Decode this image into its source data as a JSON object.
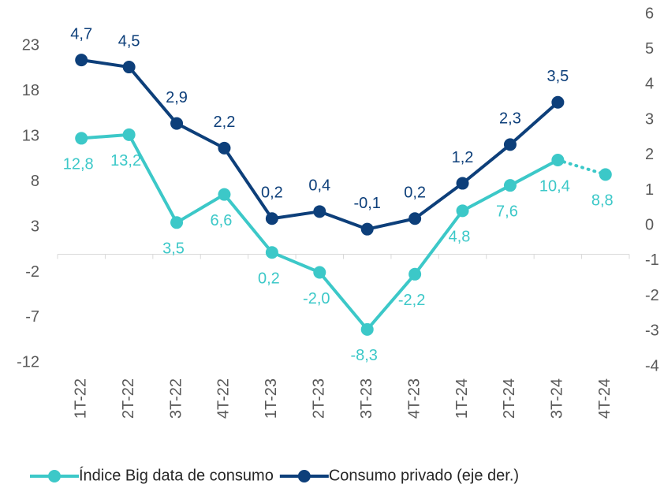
{
  "chart_data": {
    "type": "line",
    "categories": [
      "1T-22",
      "2T-22",
      "3T-22",
      "4T-22",
      "1T-23",
      "2T-23",
      "3T-23",
      "4T-23",
      "1T-24",
      "2T-24",
      "3T-24",
      "4T-24"
    ],
    "series": [
      {
        "name": "Índice Big data de consumo",
        "color": "#3cc8c8",
        "values": [
          12.8,
          13.2,
          3.5,
          6.6,
          0.2,
          -2.0,
          -8.3,
          -2.2,
          4.8,
          7.6,
          10.4,
          8.8
        ],
        "value_labels": [
          "12,8",
          "13,2",
          "3,5",
          "6,6",
          "0,2",
          "-2,0",
          "-8,3",
          "-2,2",
          "4,8",
          "7,6",
          "10,4",
          "8,8"
        ],
        "dotted_last_segment": true
      },
      {
        "name": "Consumo privado (eje der.)",
        "color": "#0d3f7a",
        "axis": "y2",
        "values": [
          4.7,
          4.5,
          2.9,
          2.2,
          0.2,
          0.4,
          -0.1,
          0.2,
          1.2,
          2.3,
          3.5,
          null
        ],
        "value_labels": [
          "4,7",
          "4,5",
          "2,9",
          "2,2",
          "0,2",
          "0,4",
          "-0,1",
          "0,2",
          "1,2",
          "2,3",
          "3,5",
          null
        ]
      }
    ],
    "ylim": [
      -12.4,
      26.5
    ],
    "yticks": [
      -12,
      -7,
      -2,
      3,
      8,
      13,
      18,
      23
    ],
    "y2lim": [
      -4,
      6
    ],
    "y2ticks": [
      -4,
      -3,
      -2,
      -1,
      0,
      1,
      2,
      3,
      4,
      5,
      6
    ],
    "legend": "bottom"
  }
}
